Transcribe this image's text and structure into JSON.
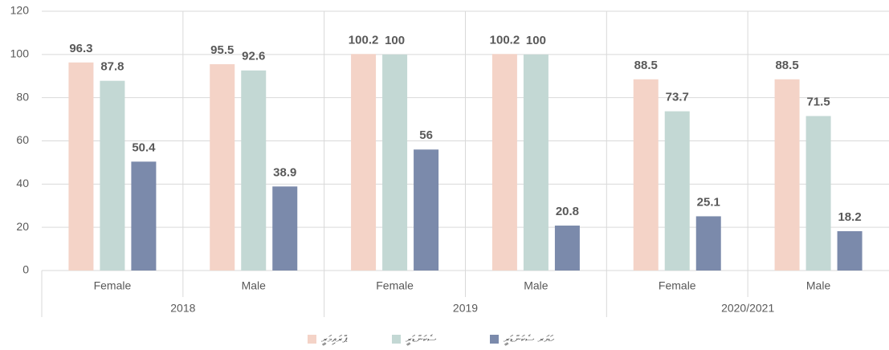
{
  "chart_data": {
    "type": "bar",
    "categories": [
      "Female",
      "Male",
      "Female",
      "Male",
      "Female",
      "Male"
    ],
    "category_groups": [
      "2018",
      "2019",
      "2020/2021"
    ],
    "series": [
      {
        "name": "ޕްރައިމަރީ",
        "color": "#f4d3c7",
        "values": [
          96.3,
          95.5,
          100.2,
          100.2,
          88.5,
          88.5
        ]
      },
      {
        "name": "ސެކަންޑަރީ",
        "color": "#c3d8d4",
        "values": [
          87.8,
          92.6,
          100,
          100,
          73.7,
          71.5
        ]
      },
      {
        "name": "ހަޔަރ ސެކަންޑަރީ",
        "color": "#7b8aab",
        "values": [
          50.4,
          38.9,
          56,
          20.8,
          25.1,
          18.2
        ]
      }
    ],
    "ylim": [
      0,
      120
    ],
    "yticks": [
      0,
      20,
      40,
      60,
      80,
      100,
      120
    ],
    "grid": true,
    "legend": "bottom"
  }
}
